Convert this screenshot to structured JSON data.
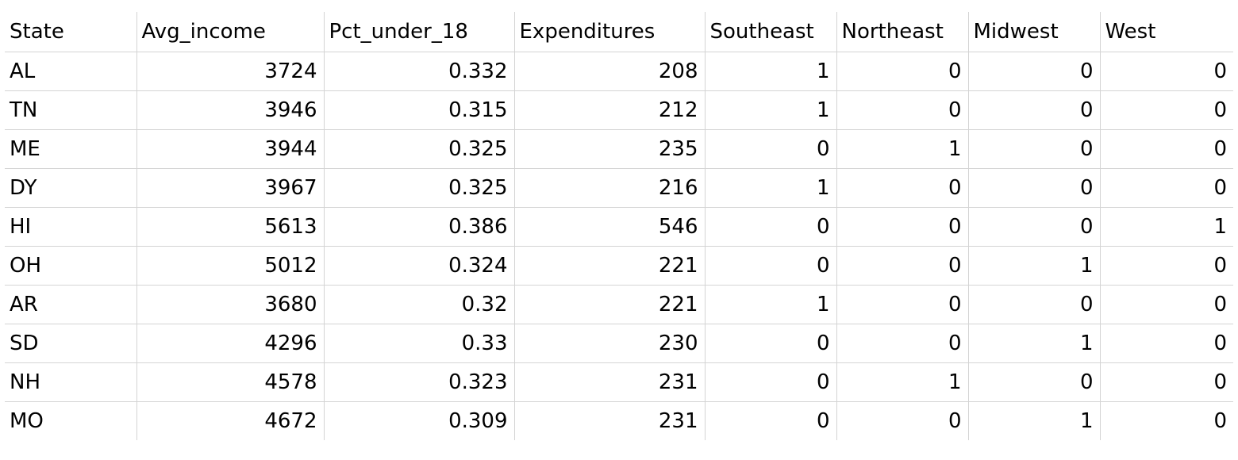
{
  "spreadsheet": {
    "headers": [
      "State",
      "Avg_income",
      "Pct_under_18",
      "Expenditures",
      "Southeast",
      "Northeast",
      "Midwest",
      "West"
    ],
    "rows": [
      [
        "AL",
        "3724",
        "0.332",
        "208",
        "1",
        "0",
        "0",
        "0"
      ],
      [
        "TN",
        "3946",
        "0.315",
        "212",
        "1",
        "0",
        "0",
        "0"
      ],
      [
        "ME",
        "3944",
        "0.325",
        "235",
        "0",
        "1",
        "0",
        "0"
      ],
      [
        "DY",
        "3967",
        "0.325",
        "216",
        "1",
        "0",
        "0",
        "0"
      ],
      [
        "HI",
        "5613",
        "0.386",
        "546",
        "0",
        "0",
        "0",
        "1"
      ],
      [
        "OH",
        "5012",
        "0.324",
        "221",
        "0",
        "0",
        "1",
        "0"
      ],
      [
        "AR",
        "3680",
        "0.32",
        "221",
        "1",
        "0",
        "0",
        "0"
      ],
      [
        "SD",
        "4296",
        "0.33",
        "230",
        "0",
        "0",
        "1",
        "0"
      ],
      [
        "NH",
        "4578",
        "0.323",
        "231",
        "0",
        "1",
        "0",
        "0"
      ],
      [
        "MO",
        "4672",
        "0.309",
        "231",
        "0",
        "0",
        "1",
        "0"
      ]
    ]
  },
  "colors": {
    "gridline": "#d4d4d4",
    "background": "#ffffff",
    "text": "#000000"
  }
}
